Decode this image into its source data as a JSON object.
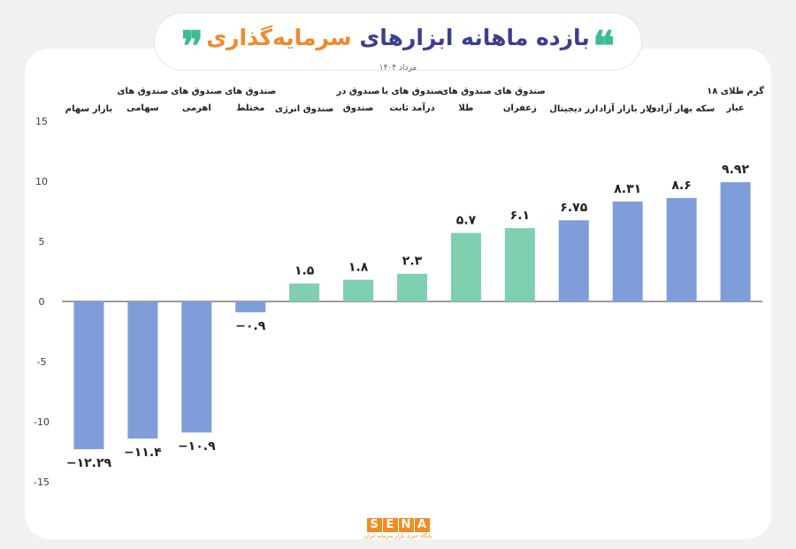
{
  "header": {
    "title_part1": "بازده ماهانه ابزارهای",
    "title_part2": "سرمایه‌گذاری",
    "quote_open": "❞",
    "quote_close": "❝",
    "subtitle": "مرداد ۱۴۰۴"
  },
  "brand": {
    "letters": [
      "S",
      "E",
      "N",
      "A"
    ],
    "tagline": "پایگاه خبری بازار سرمایه ایران"
  },
  "colors": {
    "blue": "#7f9ed9",
    "green": "#7fcfb1",
    "axis": "#3a3a3a",
    "text": "#222222"
  },
  "chart_data": {
    "type": "bar",
    "categories": [
      "بازار سهام",
      "صندوق های سهامی",
      "صندوق های اهرمی",
      "صندوق های مختلط",
      "صندوق انرژی",
      "صندوق در صندوق",
      "صندوق های با درآمد ثابت",
      "صندوق های طلا",
      "صندوق های زعفران",
      "ارز دیجیتال",
      "دلار بازار آزاد",
      "سکه بهار آزادی",
      "گرم طلای ۱۸ عیار"
    ],
    "category_lines": [
      [
        "بازار سهام"
      ],
      [
        "صندوق های",
        "سهامی"
      ],
      [
        "صندوق های",
        "اهرمی"
      ],
      [
        "صندوق های",
        "مختلط"
      ],
      [
        "صندوق انرژی"
      ],
      [
        "صندوق در",
        "صندوق"
      ],
      [
        "صندوق های با",
        "درآمد ثابت"
      ],
      [
        "صندوق های",
        "طلا"
      ],
      [
        "صندوق های",
        "زعفران"
      ],
      [
        "ارز دیجیتال"
      ],
      [
        "دلار بازار آزاد"
      ],
      [
        "سکه بهار آزادی"
      ],
      [
        "گرم طلای ۱۸",
        "عیار"
      ]
    ],
    "values": [
      -12.29,
      -11.4,
      -10.9,
      -0.9,
      1.5,
      1.8,
      2.3,
      5.7,
      6.1,
      6.75,
      8.31,
      8.6,
      9.92
    ],
    "value_labels": [
      "−۱۲.۲۹",
      "−۱۱.۴",
      "−۱۰.۹",
      "−۰.۹",
      "۱.۵",
      "۱.۸",
      "۲.۳",
      "۵.۷",
      "۶.۱",
      "۶.۷۵",
      "۸.۳۱",
      "۸.۶",
      "۹.۹۲"
    ],
    "bar_colors": [
      "#7f9ed9",
      "#7f9ed9",
      "#7f9ed9",
      "#7f9ed9",
      "#7fcfb1",
      "#7fcfb1",
      "#7fcfb1",
      "#7fcfb1",
      "#7fcfb1",
      "#7f9ed9",
      "#7f9ed9",
      "#7f9ed9",
      "#7f9ed9"
    ],
    "ylim": [
      -15,
      15
    ],
    "yticks": [
      15,
      10,
      5,
      0,
      -5,
      -10,
      -15
    ],
    "ytick_labels": [
      "15",
      "10",
      "5",
      "0",
      "-5",
      "-10",
      "-15"
    ],
    "grid": false,
    "xlabel": "",
    "ylabel": ""
  }
}
